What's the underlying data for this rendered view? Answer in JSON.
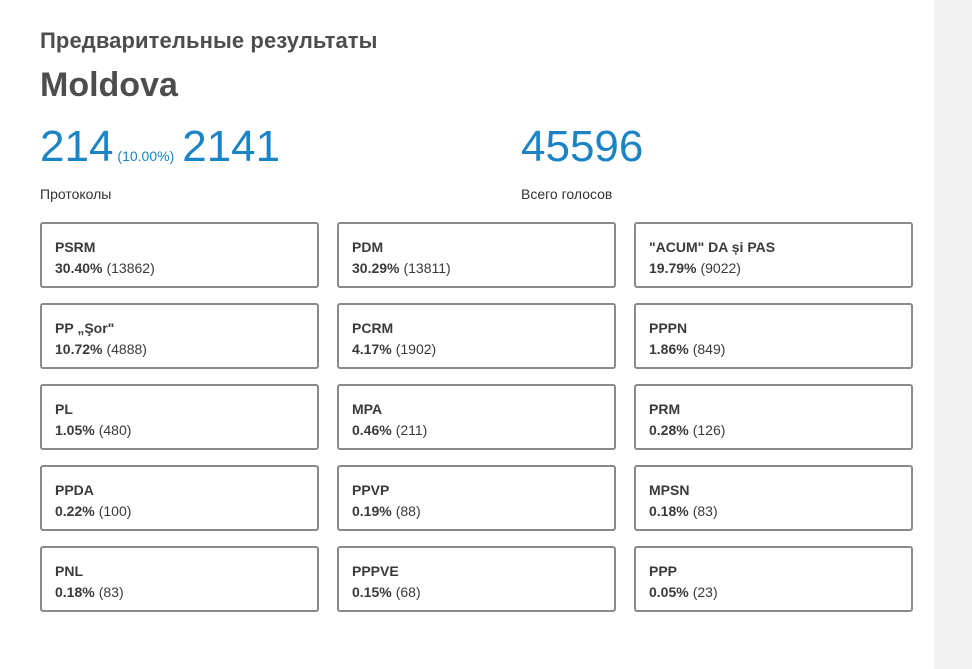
{
  "header": {
    "subtitle": "Предварительные результаты",
    "region": "Moldova"
  },
  "protocols": {
    "processed": "214",
    "percent": "(10.00%)",
    "total": "2141",
    "label": "Протоколы"
  },
  "votes": {
    "total": "45596",
    "label": "Всего голосов"
  },
  "colors": {
    "accent": "#1a84c7",
    "border": "#8a8a8a",
    "text": "#3a3a3a"
  },
  "parties": [
    {
      "name": "PSRM",
      "pct": "30.40%",
      "votes": "(13862)"
    },
    {
      "name": "PDM",
      "pct": "30.29%",
      "votes": "(13811)"
    },
    {
      "name": "\"ACUM\" DA și PAS",
      "pct": "19.79%",
      "votes": "(9022)"
    },
    {
      "name": "PP „Şor\"",
      "pct": "10.72%",
      "votes": "(4888)"
    },
    {
      "name": "PCRM",
      "pct": "4.17%",
      "votes": "(1902)"
    },
    {
      "name": "PPPN",
      "pct": "1.86%",
      "votes": "(849)"
    },
    {
      "name": "PL",
      "pct": "1.05%",
      "votes": "(480)"
    },
    {
      "name": "MPA",
      "pct": "0.46%",
      "votes": "(211)"
    },
    {
      "name": "PRM",
      "pct": "0.28%",
      "votes": "(126)"
    },
    {
      "name": "PPDA",
      "pct": "0.22%",
      "votes": "(100)"
    },
    {
      "name": "PPVP",
      "pct": "0.19%",
      "votes": "(88)"
    },
    {
      "name": "MPSN",
      "pct": "0.18%",
      "votes": "(83)"
    },
    {
      "name": "PNL",
      "pct": "0.18%",
      "votes": "(83)"
    },
    {
      "name": "PPPVE",
      "pct": "0.15%",
      "votes": "(68)"
    },
    {
      "name": "PPP",
      "pct": "0.05%",
      "votes": "(23)"
    }
  ]
}
